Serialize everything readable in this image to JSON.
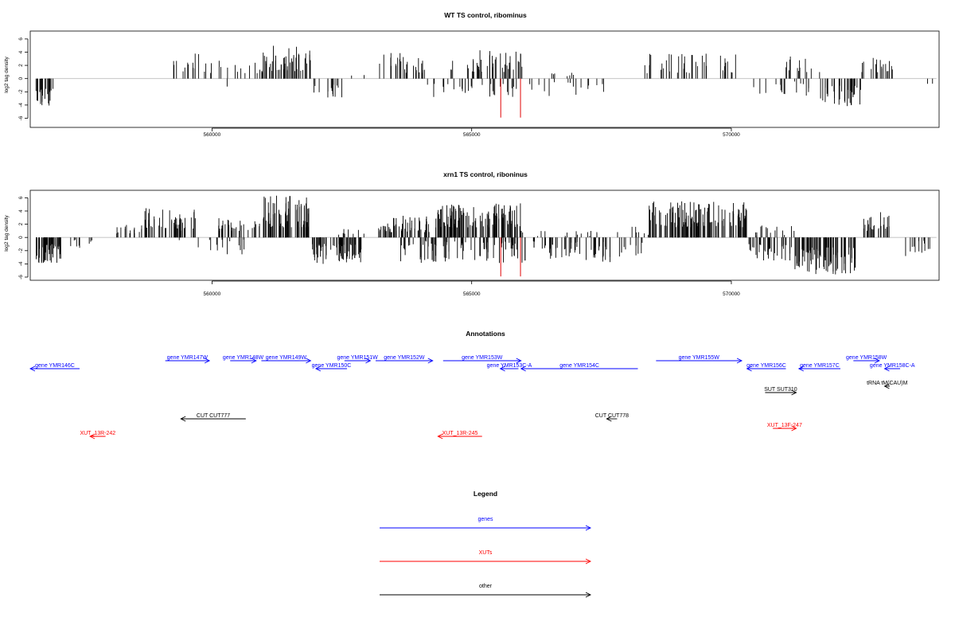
{
  "chart_data": [
    {
      "type": "bar",
      "title": "WT TS control, ribominus",
      "xlabel": "",
      "ylabel": "log2 tag density",
      "xlim": [
        556500,
        574000
      ],
      "ylim": [
        -6,
        7
      ],
      "xticks": [
        560000,
        565000,
        570000
      ],
      "xtick_labels": [
        "560000",
        "565000",
        "570000"
      ],
      "yticks": [
        -6,
        -4,
        -2,
        0,
        2,
        4,
        6
      ],
      "ytick_labels": [
        "-6",
        "-4",
        "-2",
        "0",
        "2",
        "4",
        "6"
      ],
      "grid": false,
      "baseline_color": "#bdbdbd",
      "bar_color": "#000000",
      "highlight_color": "#e31a1c",
      "highlight_bars": [
        {
          "x": 565560,
          "y": -5.9
        },
        {
          "x": 565940,
          "y": -5.9
        }
      ],
      "regions": [
        {
          "from": 556600,
          "to": 556950,
          "sign": -1,
          "min": 1.5,
          "max": 4.3,
          "density": 2.2
        },
        {
          "from": 559200,
          "to": 560900,
          "sign": 1,
          "min": 0.8,
          "max": 3.8,
          "density": 0.5
        },
        {
          "from": 560200,
          "to": 560300,
          "sign": -1,
          "min": 1.0,
          "max": 2.4,
          "density": 0.3
        },
        {
          "from": 560900,
          "to": 561900,
          "sign": 1,
          "min": 1.0,
          "max": 5.0,
          "density": 1.7
        },
        {
          "from": 561950,
          "to": 562500,
          "sign": -1,
          "min": 0.8,
          "max": 3.0,
          "density": 0.9
        },
        {
          "from": 562600,
          "to": 562950,
          "sign": 1,
          "min": 0.3,
          "max": 1.0,
          "density": 0.2
        },
        {
          "from": 563200,
          "to": 564100,
          "sign": 1,
          "min": 0.8,
          "max": 3.9,
          "density": 1.0
        },
        {
          "from": 564100,
          "to": 566000,
          "sign": -1,
          "min": 0.8,
          "max": 2.8,
          "density": 0.5
        },
        {
          "from": 564600,
          "to": 566000,
          "sign": 1,
          "min": 1.0,
          "max": 4.3,
          "density": 1.0
        },
        {
          "from": 566100,
          "to": 567600,
          "sign": -1,
          "min": 0.5,
          "max": 2.9,
          "density": 0.35
        },
        {
          "from": 566100,
          "to": 567200,
          "sign": 1,
          "min": 0.3,
          "max": 1.2,
          "density": 0.2
        },
        {
          "from": 568300,
          "to": 570100,
          "sign": 1,
          "min": 0.8,
          "max": 3.8,
          "density": 0.7
        },
        {
          "from": 570300,
          "to": 571500,
          "sign": -1,
          "min": 0.4,
          "max": 2.6,
          "density": 0.45
        },
        {
          "from": 570900,
          "to": 571700,
          "sign": 1,
          "min": 0.8,
          "max": 3.5,
          "density": 0.55
        },
        {
          "from": 571700,
          "to": 572500,
          "sign": -1,
          "min": 1.0,
          "max": 4.3,
          "density": 1.5
        },
        {
          "from": 572500,
          "to": 573100,
          "sign": 1,
          "min": 0.8,
          "max": 3.4,
          "density": 1.0
        },
        {
          "from": 573700,
          "to": 573900,
          "sign": -1,
          "min": 0.6,
          "max": 1.2,
          "density": 0.3
        }
      ]
    },
    {
      "type": "bar",
      "title": "xrn1 TS control, riboninus",
      "xlabel": "",
      "ylabel": "log2 tag density",
      "xlim": [
        556500,
        574000
      ],
      "ylim": [
        -6,
        7
      ],
      "xticks": [
        560000,
        565000,
        570000
      ],
      "xtick_labels": [
        "560000",
        "565000",
        "570000"
      ],
      "yticks": [
        -6,
        -4,
        -2,
        0,
        2,
        4,
        6
      ],
      "ytick_labels": [
        "-6",
        "-4",
        "-2",
        "0",
        "2",
        "4",
        "6"
      ],
      "grid": false,
      "baseline_color": "#bdbdbd",
      "bar_color": "#000000",
      "highlight_color": "#e31a1c",
      "highlight_bars": [
        {
          "x": 565560,
          "y": -5.9
        },
        {
          "x": 565940,
          "y": -5.9
        }
      ],
      "regions": [
        {
          "from": 556600,
          "to": 557100,
          "sign": -1,
          "min": 1.0,
          "max": 4.0,
          "density": 3.0
        },
        {
          "from": 557200,
          "to": 557700,
          "sign": -1,
          "min": 0.3,
          "max": 1.8,
          "density": 0.6
        },
        {
          "from": 558100,
          "to": 558900,
          "sign": 1,
          "min": 0.6,
          "max": 2.0,
          "density": 0.8
        },
        {
          "from": 558700,
          "to": 559700,
          "sign": 1,
          "min": 1.0,
          "max": 4.5,
          "density": 1.5
        },
        {
          "from": 559300,
          "to": 560700,
          "sign": -1,
          "min": 0.3,
          "max": 2.6,
          "density": 0.35
        },
        {
          "from": 560100,
          "to": 560900,
          "sign": 1,
          "min": 1.0,
          "max": 3.0,
          "density": 1.2
        },
        {
          "from": 560900,
          "to": 561900,
          "sign": 1,
          "min": 1.5,
          "max": 6.4,
          "density": 2.6
        },
        {
          "from": 561900,
          "to": 562950,
          "sign": -1,
          "min": 1.0,
          "max": 4.0,
          "density": 2.2
        },
        {
          "from": 562400,
          "to": 562950,
          "sign": 1,
          "min": 0.3,
          "max": 1.6,
          "density": 0.5
        },
        {
          "from": 563200,
          "to": 564200,
          "sign": 1,
          "min": 0.8,
          "max": 3.3,
          "density": 1.8
        },
        {
          "from": 563600,
          "to": 567600,
          "sign": -1,
          "min": 0.5,
          "max": 3.9,
          "density": 1.0
        },
        {
          "from": 564300,
          "to": 565950,
          "sign": 1,
          "min": 1.5,
          "max": 5.3,
          "density": 2.4
        },
        {
          "from": 565950,
          "to": 567600,
          "sign": 1,
          "min": 0.2,
          "max": 1.0,
          "density": 0.3
        },
        {
          "from": 567300,
          "to": 568300,
          "sign": -1,
          "min": 0.5,
          "max": 3.8,
          "density": 0.7
        },
        {
          "from": 567800,
          "to": 568400,
          "sign": 1,
          "min": 0.3,
          "max": 1.8,
          "density": 0.4
        },
        {
          "from": 568400,
          "to": 570300,
          "sign": 1,
          "min": 1.5,
          "max": 5.7,
          "density": 2.1
        },
        {
          "from": 570300,
          "to": 571200,
          "sign": -1,
          "min": 1.0,
          "max": 3.5,
          "density": 1.3
        },
        {
          "from": 570400,
          "to": 571300,
          "sign": 1,
          "min": 0.3,
          "max": 1.8,
          "density": 0.5
        },
        {
          "from": 571200,
          "to": 572400,
          "sign": -1,
          "min": 1.5,
          "max": 5.8,
          "density": 2.4
        },
        {
          "from": 572500,
          "to": 573100,
          "sign": 1,
          "min": 1.0,
          "max": 4.0,
          "density": 1.5
        },
        {
          "from": 573300,
          "to": 573900,
          "sign": -1,
          "min": 0.4,
          "max": 3.8,
          "density": 0.7
        }
      ]
    }
  ],
  "annotations": {
    "title": "Annotations",
    "xlim": [
      556500,
      574000
    ],
    "colors": {
      "genes": "#0000ff",
      "XUTs": "#ff0000",
      "other": "#000000"
    },
    "features": [
      {
        "label": "gene YMR146C",
        "kind": "genes",
        "start": 556500,
        "end": 557450,
        "strand": "-",
        "row": 2
      },
      {
        "label": "gene YMR147W",
        "kind": "genes",
        "start": 559100,
        "end": 559950,
        "strand": "+",
        "row": 1
      },
      {
        "label": "gene YMR148W",
        "kind": "genes",
        "start": 560350,
        "end": 560850,
        "strand": "+",
        "row": 1
      },
      {
        "label": "gene YMR149W",
        "kind": "genes",
        "start": 560950,
        "end": 561900,
        "strand": "+",
        "row": 1
      },
      {
        "label": "gene YMR150C",
        "kind": "genes",
        "start": 562000,
        "end": 562600,
        "strand": "-",
        "row": 2
      },
      {
        "label": "gene YMR151W",
        "kind": "genes",
        "start": 562550,
        "end": 563050,
        "strand": "+",
        "row": 1
      },
      {
        "label": "gene YMR152W",
        "kind": "genes",
        "start": 563150,
        "end": 564250,
        "strand": "+",
        "row": 1
      },
      {
        "label": "gene YMR153W",
        "kind": "genes",
        "start": 564450,
        "end": 565950,
        "strand": "+",
        "row": 1
      },
      {
        "label": "gene YMR153C-A",
        "kind": "genes",
        "start": 565550,
        "end": 565900,
        "strand": "-",
        "row": 2
      },
      {
        "label": "gene YMR154C",
        "kind": "genes",
        "start": 565950,
        "end": 568200,
        "strand": "-",
        "row": 2
      },
      {
        "label": "gene YMR155W",
        "kind": "genes",
        "start": 568550,
        "end": 570200,
        "strand": "+",
        "row": 1
      },
      {
        "label": "gene YMR156C",
        "kind": "genes",
        "start": 570300,
        "end": 571050,
        "strand": "-",
        "row": 2
      },
      {
        "label": "gene YMR157C",
        "kind": "genes",
        "start": 571300,
        "end": 572100,
        "strand": "-",
        "row": 2
      },
      {
        "label": "gene YMR158W",
        "kind": "genes",
        "start": 572350,
        "end": 572850,
        "strand": "+",
        "row": 1
      },
      {
        "label": "gene YMR158C-A",
        "kind": "genes",
        "start": 572950,
        "end": 573250,
        "strand": "-",
        "row": 2
      },
      {
        "label": "tRNA tM(CAU)M",
        "kind": "other",
        "start": 572950,
        "end": 573050,
        "strand": "-",
        "row": 3
      },
      {
        "label": "SUT SUT310",
        "kind": "other",
        "start": 570650,
        "end": 571250,
        "strand": "+",
        "row": 4
      },
      {
        "label": "CUT CUT777",
        "kind": "other",
        "start": 559400,
        "end": 560650,
        "strand": "-",
        "row": 5
      },
      {
        "label": "CUT CUT778",
        "kind": "other",
        "start": 567600,
        "end": 567800,
        "strand": "-",
        "row": 5
      },
      {
        "label": "XUT_13F-247",
        "kind": "XUTs",
        "start": 570800,
        "end": 571250,
        "strand": "+",
        "row": 6
      },
      {
        "label": "XUT_13R-242",
        "kind": "XUTs",
        "start": 557650,
        "end": 557950,
        "strand": "-",
        "row": 7
      },
      {
        "label": "XUT_13R-245",
        "kind": "XUTs",
        "start": 564350,
        "end": 565200,
        "strand": "-",
        "row": 7
      }
    ]
  },
  "legend": {
    "title": "Legend",
    "entries": [
      {
        "label": "genes",
        "color": "#0000ff"
      },
      {
        "label": "XUTs",
        "color": "#ff0000"
      },
      {
        "label": "other",
        "color": "#000000"
      }
    ]
  }
}
